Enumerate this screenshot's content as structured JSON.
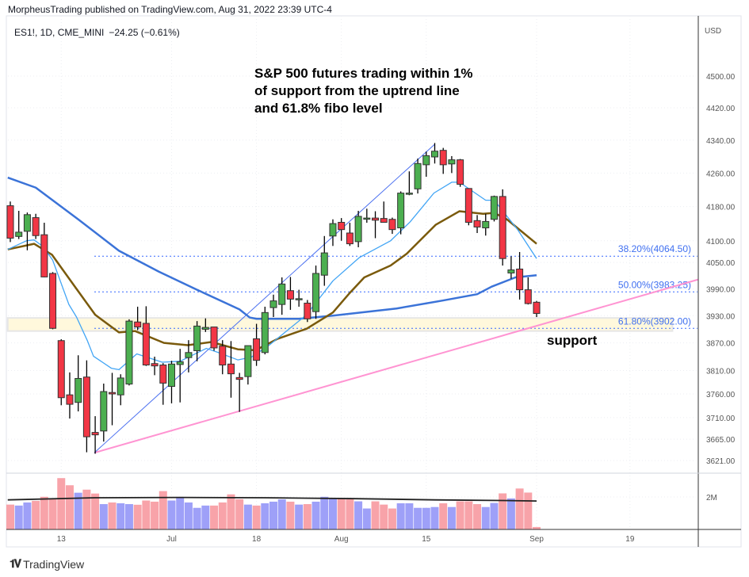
{
  "header": {
    "published": "MorpheusTrading published on TradingView.com, Aug 31, 2022 23:39 UTC-4",
    "symbol_line": "ES1!, 1D, CME_MINI",
    "change": "−24.25 (−0.61%)",
    "currency": "USD"
  },
  "annotation": {
    "lines": [
      "S&P 500 futures trading within 1%",
      "of support from the uptrend line",
      "and 61.8% fibo level"
    ],
    "support": "support"
  },
  "footer": {
    "brand": "TradingView"
  },
  "colors": {
    "up": "#4caf50",
    "down": "#f23645",
    "vol_up": "#9ea0f8",
    "vol_down": "#f8a3a9",
    "ma_fast": "#42a5f5",
    "ma_mid": "#7a5a0c",
    "ma_slow": "#3b73d8",
    "uptrend": "#4a6ff0",
    "support_line": "#ff94d2",
    "fib": "#3366ff",
    "zone": "#fff8dc"
  },
  "chart_data": {
    "type": "candlestick",
    "scale": "log",
    "grid": true,
    "y_ticks": [
      4500,
      4420,
      4340,
      4260,
      4180,
      4100,
      4050,
      3990,
      3930,
      3870,
      3810,
      3760,
      3710,
      3665,
      3621
    ],
    "y_tick_labels": [
      "4500.00",
      "4420.00",
      "4340.00",
      "4260.00",
      "4180.00",
      "4100.00",
      "4050.00",
      "3990.00",
      "3930.00",
      "3870.00",
      "3810.00",
      "3760.00",
      "3710.00",
      "3665.00",
      "3621.00"
    ],
    "x_ticks": [
      {
        "bar": 6,
        "label": "13"
      },
      {
        "bar": 19,
        "label": "Jul"
      },
      {
        "bar": 29,
        "label": "18"
      },
      {
        "bar": 39,
        "label": "Aug"
      },
      {
        "bar": 49,
        "label": "15"
      },
      {
        "bar": 62,
        "label": "Sep"
      },
      {
        "bar": 73,
        "label": "19"
      }
    ],
    "ohlc": [
      [
        4182,
        4192,
        4097,
        4106
      ],
      [
        4110,
        4170,
        4104,
        4120
      ],
      [
        4122,
        4166,
        4078,
        4161
      ],
      [
        4154,
        4163,
        4104,
        4112
      ],
      [
        4114,
        4142,
        4016,
        4017
      ],
      [
        4025,
        4028,
        3900,
        3902
      ],
      [
        3875,
        3878,
        3736,
        3752
      ],
      [
        3758,
        3806,
        3708,
        3738
      ],
      [
        3742,
        3843,
        3723,
        3793
      ],
      [
        3796,
        3832,
        3638,
        3670
      ],
      [
        3679,
        3713,
        3635,
        3674
      ],
      [
        3682,
        3782,
        3660,
        3765
      ],
      [
        3763,
        3805,
        3694,
        3760
      ],
      [
        3758,
        3802,
        3736,
        3794
      ],
      [
        3781,
        3922,
        3778,
        3918
      ],
      [
        3916,
        3950,
        3898,
        3905
      ],
      [
        3913,
        3951,
        3820,
        3822
      ],
      [
        3825,
        3840,
        3800,
        3820
      ],
      [
        3822,
        3826,
        3737,
        3783
      ],
      [
        3776,
        3831,
        3740,
        3824
      ],
      [
        3823,
        3857,
        3742,
        3829
      ],
      [
        3838,
        3876,
        3806,
        3849
      ],
      [
        3853,
        3918,
        3830,
        3907
      ],
      [
        3900,
        3924,
        3894,
        3904
      ],
      [
        3905,
        3905,
        3853,
        3859
      ],
      [
        3863,
        3876,
        3802,
        3822
      ],
      [
        3824,
        3874,
        3752,
        3803
      ],
      [
        3795,
        3805,
        3722,
        3791
      ],
      [
        3797,
        3864,
        3780,
        3864
      ],
      [
        3879,
        3912,
        3820,
        3832
      ],
      [
        3849,
        3950,
        3845,
        3937
      ],
      [
        3948,
        3977,
        3927,
        3963
      ],
      [
        3955,
        4016,
        3932,
        4001
      ],
      [
        3986,
        4017,
        3943,
        3967
      ],
      [
        3968,
        3988,
        3950,
        3968
      ],
      [
        3958,
        3965,
        3916,
        3923
      ],
      [
        3939,
        4043,
        3923,
        4025
      ],
      [
        4021,
        4111,
        3997,
        4072
      ],
      [
        4111,
        4150,
        4088,
        4140
      ],
      [
        4143,
        4153,
        4100,
        4126
      ],
      [
        4118,
        4142,
        4088,
        4093
      ],
      [
        4098,
        4170,
        4085,
        4157
      ],
      [
        4153,
        4175,
        4142,
        4153
      ],
      [
        4153,
        4169,
        4106,
        4148
      ],
      [
        4152,
        4192,
        4143,
        4143
      ],
      [
        4150,
        4154,
        4116,
        4126
      ],
      [
        4130,
        4216,
        4115,
        4212
      ],
      [
        4212,
        4264,
        4207,
        4212
      ],
      [
        4222,
        4295,
        4211,
        4283
      ],
      [
        4280,
        4312,
        4251,
        4302
      ],
      [
        4299,
        4333,
        4283,
        4313
      ],
      [
        4315,
        4321,
        4258,
        4280
      ],
      [
        4282,
        4301,
        4260,
        4292
      ],
      [
        4292,
        4294,
        4227,
        4233
      ],
      [
        4223,
        4223,
        4136,
        4143
      ],
      [
        4147,
        4160,
        4118,
        4132
      ],
      [
        4130,
        4163,
        4112,
        4145
      ],
      [
        4150,
        4206,
        4145,
        4204
      ],
      [
        4204,
        4221,
        4043,
        4059
      ],
      [
        4026,
        4064,
        4013,
        4033
      ],
      [
        4035,
        4074,
        3966,
        3988
      ],
      [
        3988,
        4016,
        3955,
        3957
      ],
      [
        3960,
        3963,
        3927,
        3935
      ]
    ],
    "volume_millions": [
      1.53,
      1.47,
      1.66,
      1.76,
      2.01,
      1.86,
      3.16,
      2.72,
      2.26,
      2.45,
      2.21,
      1.56,
      1.66,
      1.61,
      1.56,
      1.52,
      1.78,
      1.71,
      2.36,
      1.78,
      1.94,
      1.66,
      1.33,
      1.47,
      1.47,
      1.66,
      2.16,
      1.86,
      1.53,
      1.47,
      1.61,
      1.71,
      1.85,
      1.71,
      1.53,
      1.56,
      1.71,
      2.01,
      1.91,
      1.89,
      1.86,
      1.73,
      1.29,
      1.73,
      1.53,
      1.29,
      1.61,
      1.61,
      1.33,
      1.33,
      1.38,
      1.61,
      1.38,
      1.73,
      1.73,
      1.56,
      1.38,
      1.63,
      2.22,
      1.91,
      2.52,
      2.27,
      0.15
    ],
    "volume_tick": {
      "value": 2,
      "label": "2M"
    },
    "volume_ma": [
      [
        -0.3,
        1.82
      ],
      [
        10,
        1.95
      ],
      [
        20,
        1.97
      ],
      [
        30,
        1.95
      ],
      [
        40,
        1.9
      ],
      [
        50,
        1.82
      ],
      [
        58,
        1.78
      ],
      [
        62,
        1.75
      ]
    ],
    "ma_fast": [
      [
        -0.3,
        4080
      ],
      [
        1.9,
        4100
      ],
      [
        2.8,
        4102
      ],
      [
        3.9,
        4086
      ],
      [
        5,
        4055
      ],
      [
        6.9,
        3955
      ],
      [
        7.8,
        3927
      ],
      [
        9.1,
        3874
      ],
      [
        9.8,
        3841
      ],
      [
        11.9,
        3815
      ],
      [
        12.8,
        3812
      ],
      [
        14.9,
        3846
      ],
      [
        17.9,
        3828
      ],
      [
        20,
        3830
      ],
      [
        23.1,
        3858
      ],
      [
        24.5,
        3849
      ],
      [
        26.8,
        3833
      ],
      [
        28.4,
        3839
      ],
      [
        30.5,
        3865
      ],
      [
        34.9,
        3932
      ],
      [
        38,
        4008
      ],
      [
        41.1,
        4061
      ],
      [
        44.8,
        4100
      ],
      [
        47.1,
        4144
      ],
      [
        49.9,
        4212
      ],
      [
        52,
        4238
      ],
      [
        52.9,
        4238
      ],
      [
        56,
        4195
      ],
      [
        57,
        4195
      ],
      [
        59.8,
        4125
      ],
      [
        62,
        4059
      ]
    ],
    "ma_mid": [
      [
        -0.3,
        4080
      ],
      [
        2.8,
        4093
      ],
      [
        4.9,
        4068
      ],
      [
        7.8,
        3990
      ],
      [
        10,
        3932
      ],
      [
        12.8,
        3893
      ],
      [
        14.7,
        3896
      ],
      [
        18.1,
        3870
      ],
      [
        20.9,
        3865
      ],
      [
        23.7,
        3872
      ],
      [
        26.8,
        3856
      ],
      [
        28.9,
        3854
      ],
      [
        31.5,
        3879
      ],
      [
        34.9,
        3901
      ],
      [
        38,
        3937
      ],
      [
        39.9,
        3979
      ],
      [
        41.7,
        4016
      ],
      [
        44.8,
        4043
      ],
      [
        46.7,
        4070
      ],
      [
        50.1,
        4137
      ],
      [
        52.9,
        4169
      ],
      [
        55.7,
        4163
      ],
      [
        57,
        4165
      ],
      [
        58.5,
        4150
      ],
      [
        62,
        4093
      ]
    ],
    "ma_slow": [
      [
        -0.3,
        4249
      ],
      [
        3,
        4225
      ],
      [
        8,
        4150
      ],
      [
        12.8,
        4077
      ],
      [
        17.5,
        4029
      ],
      [
        22,
        3988
      ],
      [
        27,
        3944
      ],
      [
        28.2,
        3926
      ],
      [
        29,
        3923
      ],
      [
        34,
        3923
      ],
      [
        38,
        3930
      ],
      [
        45.5,
        3946
      ],
      [
        51,
        3964
      ],
      [
        55,
        3978
      ],
      [
        56.7,
        3995
      ],
      [
        59.5,
        4016
      ],
      [
        62,
        4021
      ]
    ],
    "uptrend_line": [
      [
        9.9,
        3637
      ],
      [
        50,
        4330
      ]
    ],
    "support_line": [
      [
        9.9,
        3637
      ],
      [
        81,
        4011
      ]
    ],
    "support_zone": {
      "from_bar": -0.3,
      "to_bar": 78,
      "low": 3896,
      "high": 3925
    },
    "fib_levels": [
      {
        "ratio": "38.20%",
        "price": 4064.5,
        "label": "38.20%(4064.50)"
      },
      {
        "ratio": "50.00%",
        "price": 3983.25,
        "label": "50.00%(3983.25)"
      },
      {
        "ratio": "61.80%",
        "price": 3902.0,
        "label": "61.80%(3902.00)"
      }
    ],
    "fib_from_bar": 9.9
  }
}
